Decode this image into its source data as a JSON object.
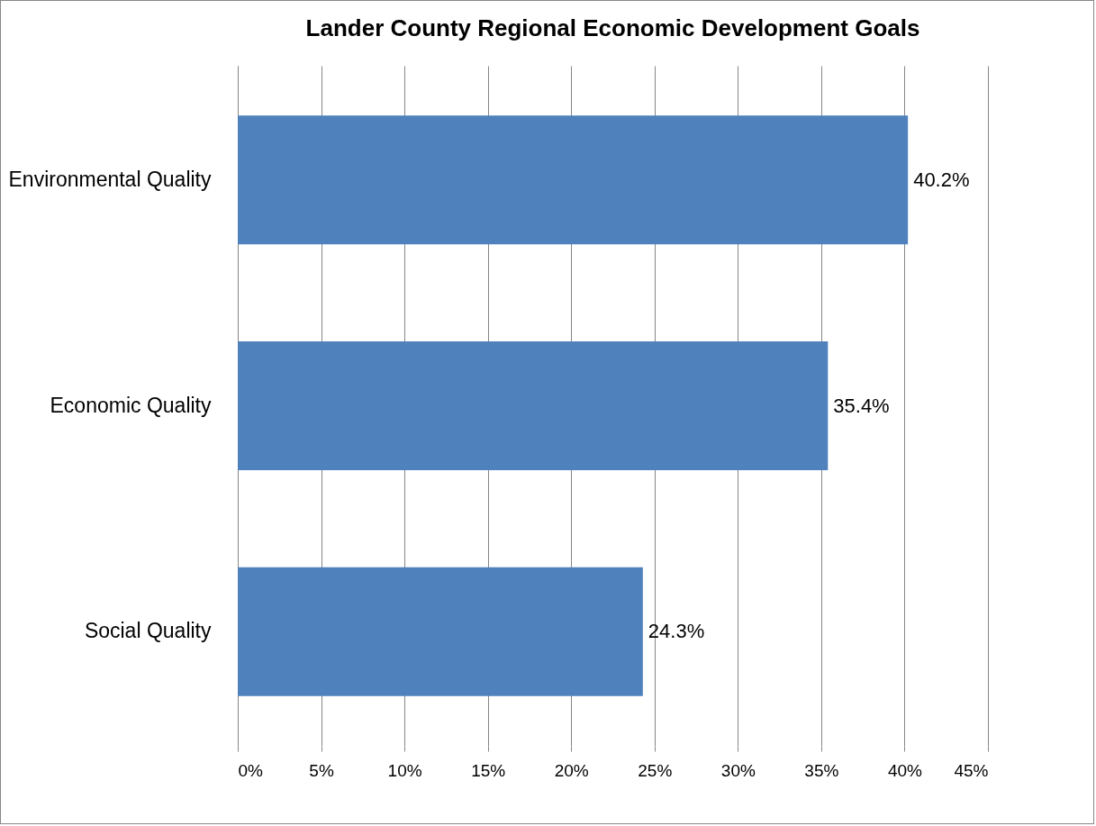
{
  "chart_data": {
    "type": "bar",
    "orientation": "horizontal",
    "title": "Lander County Regional Economic Development Goals",
    "categories": [
      "Environmental Quality",
      "Economic Quality",
      "Social Quality"
    ],
    "values": [
      40.2,
      35.4,
      24.3
    ],
    "color": "#4f81bd",
    "value_labels": [
      "40.2%",
      "35.4%",
      "24.3%"
    ],
    "xlim": [
      0,
      45
    ],
    "xticks": [
      {
        "value": 0,
        "label": "0%"
      },
      {
        "value": 5,
        "label": "5%"
      },
      {
        "value": 10,
        "label": "10%"
      },
      {
        "value": 15,
        "label": "15%"
      },
      {
        "value": 20,
        "label": "20%"
      },
      {
        "value": 25,
        "label": "25%"
      },
      {
        "value": 30,
        "label": "30%"
      },
      {
        "value": 35,
        "label": "35%"
      },
      {
        "value": 40,
        "label": "40%"
      },
      {
        "value": 45,
        "label": "45%"
      }
    ],
    "grid": "x"
  }
}
